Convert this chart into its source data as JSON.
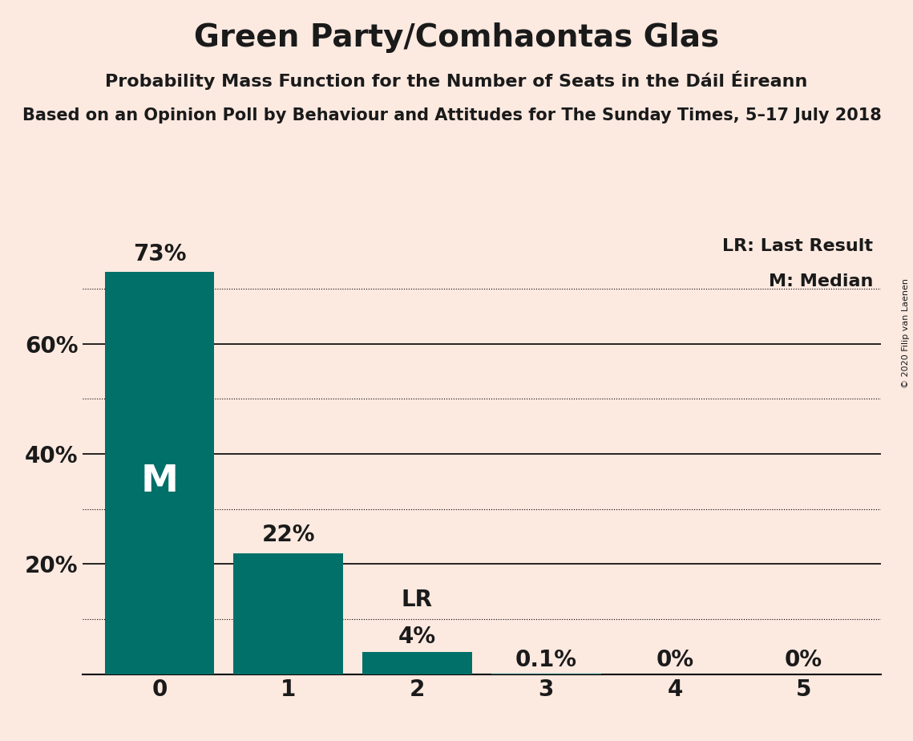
{
  "title": "Green Party/Comhaontas Glas",
  "subtitle": "Probability Mass Function for the Number of Seats in the Dáil Éireann",
  "source": "Based on an Opinion Poll by Behaviour and Attitudes for The Sunday Times, 5–17 July 2018",
  "copyright": "© 2020 Filip van Laenen",
  "categories": [
    0,
    1,
    2,
    3,
    4,
    5
  ],
  "values": [
    0.73,
    0.22,
    0.04,
    0.001,
    0.0,
    0.0
  ],
  "labels": [
    "73%",
    "22%",
    "4%",
    "0.1%",
    "0%",
    "0%"
  ],
  "bar_color": "#007068",
  "background_color": "#fce9e0",
  "text_color": "#1a1a1a",
  "median_bar": 0,
  "lr_bar": 2,
  "median_label": "M",
  "lr_label": "LR",
  "legend_lr": "LR: Last Result",
  "legend_m": "M: Median",
  "yticks": [
    0.0,
    0.2,
    0.4,
    0.6
  ],
  "ytick_labels": [
    "",
    "20%",
    "40%",
    "60%"
  ],
  "dotted_lines": [
    0.1,
    0.3,
    0.5,
    0.7
  ],
  "solid_lines": [
    0.2,
    0.4,
    0.6
  ],
  "ylim": [
    0,
    0.8
  ],
  "title_fontsize": 28,
  "subtitle_fontsize": 16,
  "source_fontsize": 15,
  "bar_label_fontsize": 20,
  "axis_fontsize": 20,
  "legend_fontsize": 16,
  "copyright_fontsize": 8
}
